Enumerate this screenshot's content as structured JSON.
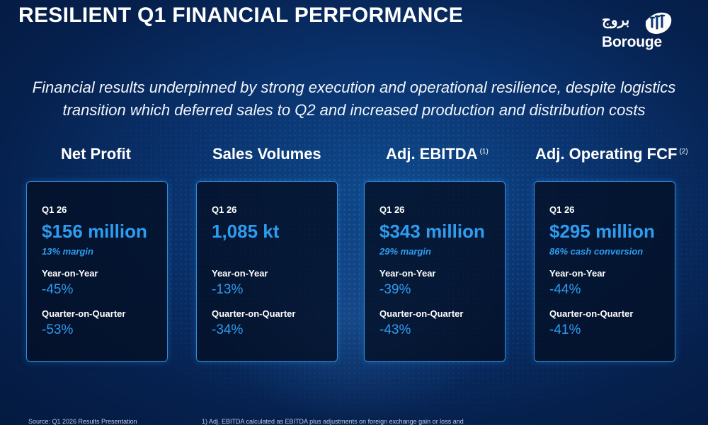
{
  "header": {
    "title": "RESILIENT Q1 FINANCIAL PERFORMANCE"
  },
  "logo": {
    "arabic": "بروج",
    "name": "Borouge"
  },
  "subtitle": [
    "Financial results underpinned by strong execution and operational resilience, despite logistics",
    "transition which deferred sales to Q2 and increased production and distribution costs"
  ],
  "columns": [
    {
      "heading": "Net Profit",
      "footnote": "",
      "period": "Q1 26",
      "value": "$156 million",
      "sub": "13% margin",
      "yoy_label": "Year-on-Year",
      "yoy": "-45%",
      "qoq_label": "Quarter-on-Quarter",
      "qoq": "-53%"
    },
    {
      "heading": "Sales Volumes",
      "footnote": "",
      "period": "Q1 26",
      "value": "1,085 kt",
      "sub": "",
      "yoy_label": "Year-on-Year",
      "yoy": "-13%",
      "qoq_label": "Quarter-on-Quarter",
      "qoq": "-34%"
    },
    {
      "heading": "Adj. EBITDA",
      "footnote": "(1)",
      "period": "Q1 26",
      "value": "$343 million",
      "sub": "29% margin",
      "yoy_label": "Year-on-Year",
      "yoy": "-39%",
      "qoq_label": "Quarter-on-Quarter",
      "qoq": "-43%"
    },
    {
      "heading": "Adj. Operating FCF",
      "footnote": "(2)",
      "period": "Q1 26",
      "value": "$295 million",
      "sub": "86% cash conversion",
      "yoy_label": "Year-on-Year",
      "yoy": "-44%",
      "qoq_label": "Quarter-on-Quarter",
      "qoq": "-41%"
    }
  ],
  "footer": {
    "source": "Source: Q1 2026 Results Presentation",
    "note": "1) Adj. EBITDA calculated as EBITDA plus adjustments on foreign exchange gain or loss and"
  },
  "colors": {
    "background": "#0a3470",
    "accent": "#2e9cf0",
    "card_border": "#2f8fdc",
    "card_fill": "#041026"
  }
}
